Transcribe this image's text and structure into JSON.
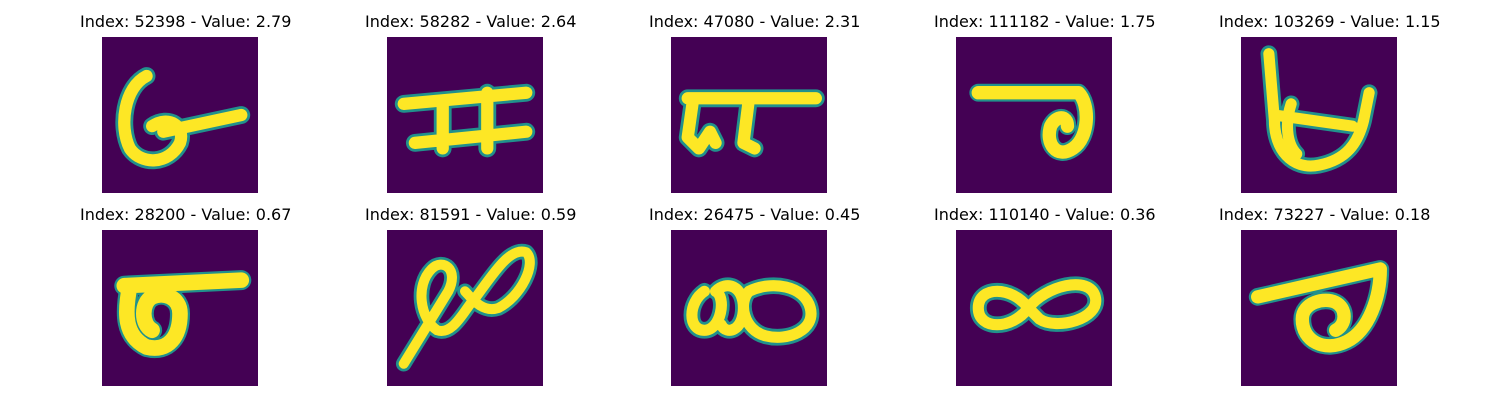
{
  "background_color": "#440154",
  "ink_color": "#fde725",
  "edge_color": "#21918c",
  "panels": [
    {
      "title": "Index: 52398 - Value: 2.79"
    },
    {
      "title": "Index: 58282 - Value: 2.64"
    },
    {
      "title": "Index: 47080 - Value: 2.31"
    },
    {
      "title": "Index: 111182 - Value: 1.75"
    },
    {
      "title": "Index: 103269 - Value: 1.15"
    },
    {
      "title": "Index: 28200 - Value: 0.67"
    },
    {
      "title": "Index: 81591 - Value: 0.59"
    },
    {
      "title": "Index: 26475 - Value: 0.45"
    },
    {
      "title": "Index: 110140 - Value: 0.36"
    },
    {
      "title": "Index: 73227 - Value: 0.18"
    }
  ]
}
